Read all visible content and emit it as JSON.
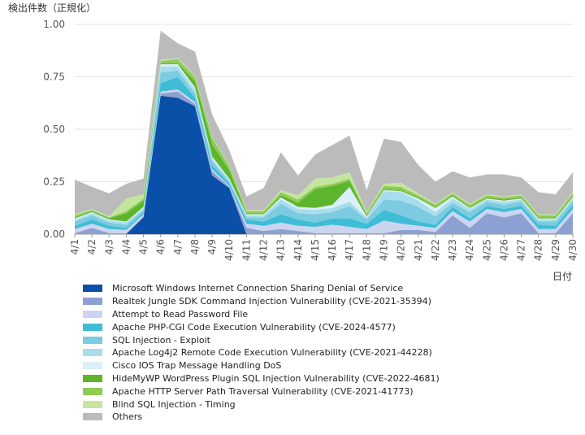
{
  "chart_data": {
    "type": "area",
    "stacked": true,
    "title": "",
    "ylabel": "検出件数（正規化）",
    "xlabel": "日付",
    "ylim": [
      0,
      1
    ],
    "yticks": [
      "0.00",
      "0.25",
      "0.50",
      "0.75",
      "1.00"
    ],
    "categories": [
      "4/1",
      "4/2",
      "4/3",
      "4/4",
      "4/5",
      "4/6",
      "4/7",
      "4/8",
      "4/9",
      "4/10",
      "4/11",
      "4/12",
      "4/13",
      "4/14",
      "4/15",
      "4/16",
      "4/17",
      "4/18",
      "4/19",
      "4/20",
      "4/21",
      "4/22",
      "4/23",
      "4/24",
      "4/25",
      "4/26",
      "4/27",
      "4/28",
      "4/29",
      "4/30"
    ],
    "series": [
      {
        "name": "Microsoft Windows Internet Connection Sharing Denial of Service",
        "color": "#0b50a8",
        "values": [
          0,
          0,
          0,
          0,
          0.08,
          0.66,
          0.65,
          0.61,
          0.28,
          0.22,
          0,
          0,
          0,
          0,
          0,
          0,
          0,
          0,
          0,
          0,
          0,
          0,
          0,
          0,
          0,
          0,
          0,
          0,
          0,
          0
        ]
      },
      {
        "name": "Realtek Jungle SDK Command Injection Vulnerability (CVE-2021-35394)",
        "color": "#8da0d2",
        "values": [
          0.005,
          0.03,
          0.005,
          0.005,
          0.005,
          0.01,
          0.03,
          0.01,
          0.02,
          0.005,
          0.03,
          0.015,
          0.025,
          0.015,
          0.005,
          0.005,
          0.005,
          0.005,
          0.005,
          0.02,
          0.02,
          0.01,
          0.09,
          0.03,
          0.1,
          0.08,
          0.1,
          0.005,
          0.005,
          0.1
        ]
      },
      {
        "name": "Attempt to Read Password File",
        "color": "#ccd5ef",
        "values": [
          0.02,
          0.02,
          0.02,
          0.015,
          0.01,
          0.01,
          0.01,
          0.01,
          0.01,
          0.005,
          0.02,
          0.025,
          0.03,
          0.025,
          0.03,
          0.04,
          0.03,
          0.02,
          0.06,
          0.03,
          0.02,
          0.02,
          0.02,
          0.03,
          0.02,
          0.025,
          0.02,
          0.02,
          0.02,
          0.02
        ]
      },
      {
        "name": "Apache PHP-CGI Code Execution Vulnerability (CVE-2024-4577)",
        "color": "#3fbcd6",
        "values": [
          0.015,
          0.02,
          0.015,
          0.01,
          0.01,
          0.04,
          0.06,
          0.02,
          0.02,
          0.01,
          0.02,
          0.02,
          0.04,
          0.03,
          0.02,
          0.03,
          0.04,
          0.025,
          0.05,
          0.04,
          0.02,
          0.015,
          0.02,
          0.015,
          0.015,
          0.015,
          0.015,
          0.02,
          0.015,
          0.02
        ]
      },
      {
        "name": "SQL Injection - Exploit",
        "color": "#7ccbe0",
        "values": [
          0.02,
          0.02,
          0.015,
          0.015,
          0.01,
          0.05,
          0.03,
          0.02,
          0.02,
          0.01,
          0.01,
          0.02,
          0.05,
          0.03,
          0.04,
          0.03,
          0.06,
          0.02,
          0.05,
          0.07,
          0.07,
          0.04,
          0.02,
          0.03,
          0.02,
          0.02,
          0.02,
          0.015,
          0.02,
          0.02
        ]
      },
      {
        "name": "Apache Log4j2 Remote Code Execution Vulnerability (CVE-2021-44228)",
        "color": "#a9dded",
        "values": [
          0.01,
          0.01,
          0.01,
          0.01,
          0.01,
          0.03,
          0.02,
          0.02,
          0.01,
          0.01,
          0.01,
          0.01,
          0.02,
          0.02,
          0.02,
          0.02,
          0.02,
          0.01,
          0.04,
          0.04,
          0.03,
          0.02,
          0.02,
          0.015,
          0.01,
          0.015,
          0.01,
          0.01,
          0.01,
          0.01
        ]
      },
      {
        "name": "Cisco IOS Trap Message Handling DoS",
        "color": "#dbf0f8",
        "values": [
          0.005,
          0.005,
          0.005,
          0.005,
          0.005,
          0.01,
          0.01,
          0.01,
          0.01,
          0.005,
          0.005,
          0.005,
          0.01,
          0.01,
          0.01,
          0.015,
          0.07,
          0.005,
          0.005,
          0.005,
          0.01,
          0.02,
          0.01,
          0.005,
          0.005,
          0.005,
          0.005,
          0.005,
          0.005,
          0.005
        ]
      },
      {
        "name": "HideMyWP WordPress Plugin SQL Injection Vulnerability (CVE-2022-4681)",
        "color": "#5db52e",
        "values": [
          0.005,
          0.005,
          0.005,
          0.04,
          0.03,
          0.005,
          0.005,
          0.03,
          0.06,
          0.04,
          0.005,
          0.005,
          0.01,
          0.02,
          0.09,
          0.09,
          0.03,
          0.005,
          0.005,
          0.005,
          0.005,
          0.005,
          0.005,
          0.005,
          0.005,
          0.005,
          0.005,
          0.005,
          0.005,
          0.005
        ]
      },
      {
        "name": "Apache HTTP Server Path Traversal Vulnerability (CVE-2021-41773)",
        "color": "#8fcc55",
        "values": [
          0.01,
          0.005,
          0.005,
          0.01,
          0.01,
          0.01,
          0.02,
          0.02,
          0.03,
          0.02,
          0.01,
          0.01,
          0.015,
          0.015,
          0.01,
          0.01,
          0.01,
          0.01,
          0.015,
          0.015,
          0.01,
          0.01,
          0.01,
          0.01,
          0.01,
          0.01,
          0.01,
          0.01,
          0.01,
          0.015
        ]
      },
      {
        "name": "Blind SQL Injection - Timing",
        "color": "#c4e59e",
        "values": [
          0.005,
          0.005,
          0.005,
          0.06,
          0.02,
          0.005,
          0.005,
          0.005,
          0.005,
          0.005,
          0.005,
          0.005,
          0.01,
          0.02,
          0.04,
          0.03,
          0.03,
          0.005,
          0.01,
          0.02,
          0.01,
          0.005,
          0.005,
          0.005,
          0.005,
          0.005,
          0.005,
          0.005,
          0.005,
          0.005
        ]
      },
      {
        "name": "Others",
        "color": "#bbbbbb",
        "values": [
          0.165,
          0.105,
          0.11,
          0.07,
          0.075,
          0.14,
          0.07,
          0.115,
          0.105,
          0.07,
          0.065,
          0.105,
          0.18,
          0.095,
          0.115,
          0.155,
          0.175,
          0.105,
          0.215,
          0.195,
          0.135,
          0.105,
          0.1,
          0.125,
          0.095,
          0.105,
          0.08,
          0.105,
          0.095,
          0.095
        ]
      }
    ]
  }
}
